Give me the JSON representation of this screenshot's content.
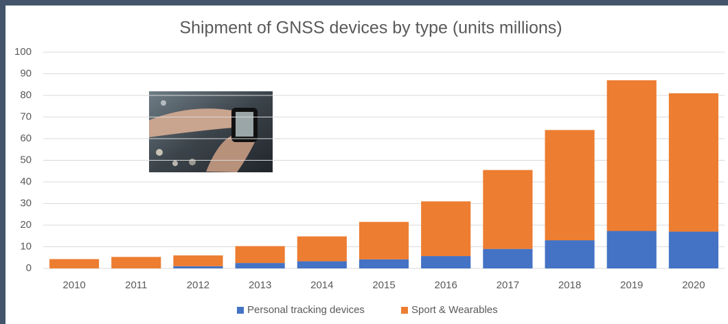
{
  "chart_data": {
    "type": "stacked-bar",
    "title": "Shipment of GNSS devices by type (units millions)",
    "categories": [
      "2010",
      "2011",
      "2012",
      "2013",
      "2014",
      "2015",
      "2016",
      "2017",
      "2018",
      "2019",
      "2020"
    ],
    "series": [
      {
        "name": "Personal tracking devices",
        "color": "#4472c4",
        "values": [
          0,
          0,
          1,
          2.5,
          3.3,
          4.2,
          5.7,
          9,
          13,
          17.3,
          17
        ]
      },
      {
        "name": "Sport & Wearables",
        "color": "#ed7d31",
        "values": [
          4.3,
          5.3,
          5,
          7.8,
          11.5,
          17.3,
          25.3,
          36.5,
          51,
          69.7,
          64
        ]
      }
    ],
    "ylim": [
      0,
      100
    ],
    "yticks": [
      0,
      10,
      20,
      30,
      40,
      50,
      60,
      70,
      80,
      90,
      100
    ],
    "grid": true,
    "legend": "bottom"
  }
}
